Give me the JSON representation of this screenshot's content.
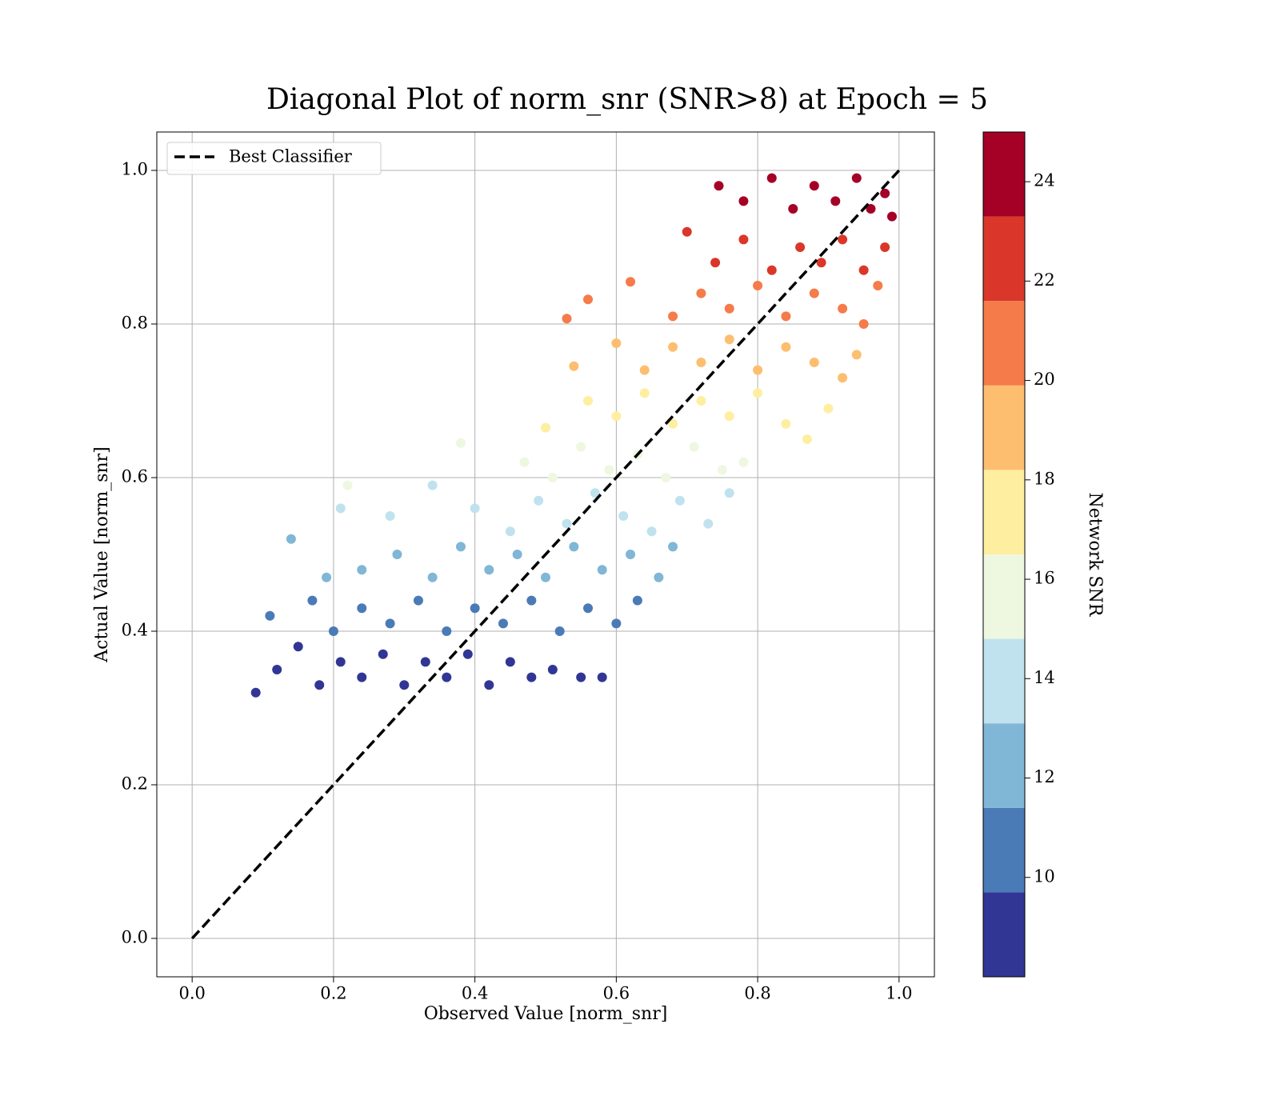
{
  "chart_data": {
    "type": "scatter",
    "title": "Diagonal Plot of norm_snr (SNR>8) at Epoch = 5",
    "x_label": "Observed Value [norm_snr]",
    "y_label": "Actual Value [norm_snr]",
    "xlim": [
      -0.05,
      1.05
    ],
    "ylim": [
      -0.05,
      1.05
    ],
    "xticks": [
      {
        "value": 0,
        "label": "0.0"
      },
      0.2,
      0.4,
      0.6,
      0.8,
      {
        "value": 1,
        "label": "1.0"
      }
    ],
    "yticks": [
      {
        "value": 0,
        "label": "0.0"
      },
      0.2,
      0.4,
      0.6,
      0.8,
      {
        "value": 1,
        "label": "1.0"
      }
    ],
    "grid": true,
    "legend": "upper left",
    "reference_line": {
      "name": "Best Classifier",
      "x": [
        0,
        1
      ],
      "y": [
        0,
        1
      ],
      "color": "#000000",
      "style": "dashed"
    },
    "series": [
      {
        "color": "#313695",
        "x": [
          0.09,
          0.12,
          0.15,
          0.18,
          0.21,
          0.24,
          0.27,
          0.3,
          0.33,
          0.36,
          0.39,
          0.42,
          0.45,
          0.48,
          0.51,
          0.55,
          0.58
        ],
        "y": [
          0.32,
          0.35,
          0.38,
          0.33,
          0.36,
          0.34,
          0.37,
          0.33,
          0.36,
          0.34,
          0.37,
          0.33,
          0.36,
          0.34,
          0.35,
          0.34,
          0.34
        ]
      },
      {
        "color": "#4a7bb7",
        "x": [
          0.11,
          0.17,
          0.2,
          0.24,
          0.28,
          0.32,
          0.36,
          0.4,
          0.44,
          0.48,
          0.52,
          0.56,
          0.6,
          0.63
        ],
        "y": [
          0.42,
          0.44,
          0.4,
          0.43,
          0.41,
          0.44,
          0.4,
          0.43,
          0.41,
          0.44,
          0.4,
          0.43,
          0.41,
          0.44
        ]
      },
      {
        "color": "#80b6d6",
        "x": [
          0.14,
          0.19,
          0.24,
          0.29,
          0.34,
          0.38,
          0.42,
          0.46,
          0.5,
          0.54,
          0.58,
          0.62,
          0.66,
          0.68
        ],
        "y": [
          0.52,
          0.47,
          0.48,
          0.5,
          0.47,
          0.51,
          0.48,
          0.5,
          0.47,
          0.51,
          0.48,
          0.5,
          0.47,
          0.51
        ]
      },
      {
        "color": "#c0e2ee",
        "x": [
          0.21,
          0.28,
          0.34,
          0.4,
          0.45,
          0.49,
          0.53,
          0.57,
          0.61,
          0.65,
          0.69,
          0.73,
          0.76
        ],
        "y": [
          0.56,
          0.55,
          0.59,
          0.56,
          0.53,
          0.57,
          0.54,
          0.58,
          0.55,
          0.53,
          0.57,
          0.54,
          0.58
        ]
      },
      {
        "color": "#eef7e0",
        "x": [
          0.22,
          0.38,
          0.47,
          0.51,
          0.55,
          0.59,
          0.63,
          0.67,
          0.71,
          0.75,
          0.78
        ],
        "y": [
          0.59,
          0.645,
          0.62,
          0.6,
          0.64,
          0.61,
          0.63,
          0.6,
          0.64,
          0.61,
          0.62
        ]
      },
      {
        "color": "#feeea0",
        "x": [
          0.5,
          0.56,
          0.6,
          0.64,
          0.68,
          0.72,
          0.76,
          0.8,
          0.84,
          0.87,
          0.9
        ],
        "y": [
          0.665,
          0.7,
          0.68,
          0.71,
          0.67,
          0.7,
          0.68,
          0.71,
          0.67,
          0.65,
          0.69
        ]
      },
      {
        "color": "#fdbe70",
        "x": [
          0.54,
          0.6,
          0.64,
          0.68,
          0.72,
          0.76,
          0.8,
          0.84,
          0.88,
          0.92,
          0.94
        ],
        "y": [
          0.745,
          0.775,
          0.74,
          0.77,
          0.75,
          0.78,
          0.74,
          0.77,
          0.75,
          0.73,
          0.76
        ]
      },
      {
        "color": "#f57b4a",
        "x": [
          0.53,
          0.56,
          0.62,
          0.68,
          0.72,
          0.76,
          0.8,
          0.84,
          0.88,
          0.92,
          0.95,
          0.97
        ],
        "y": [
          0.807,
          0.832,
          0.855,
          0.81,
          0.84,
          0.82,
          0.85,
          0.81,
          0.84,
          0.82,
          0.8,
          0.85
        ]
      },
      {
        "color": "#da372a",
        "x": [
          0.7,
          0.74,
          0.78,
          0.82,
          0.86,
          0.89,
          0.92,
          0.95,
          0.98
        ],
        "y": [
          0.92,
          0.88,
          0.91,
          0.87,
          0.9,
          0.88,
          0.91,
          0.87,
          0.9
        ]
      },
      {
        "color": "#a50026",
        "x": [
          0.745,
          0.78,
          0.82,
          0.85,
          0.88,
          0.91,
          0.94,
          0.96,
          0.98,
          0.99
        ],
        "y": [
          0.98,
          0.96,
          0.99,
          0.95,
          0.98,
          0.96,
          0.99,
          0.95,
          0.97,
          0.94
        ]
      }
    ],
    "colorbar": {
      "label": "Network SNR",
      "boundaries": [
        8,
        9.7,
        11.4,
        13.1,
        14.8,
        16.5,
        18.2,
        19.9,
        21.6,
        23.3,
        25
      ],
      "ticks": [
        10,
        12,
        14,
        16,
        18,
        20,
        22,
        24
      ]
    }
  }
}
